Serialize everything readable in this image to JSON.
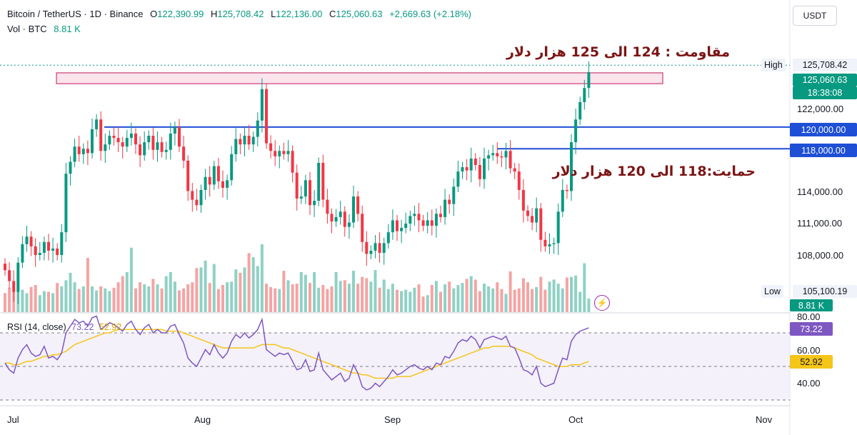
{
  "header": {
    "symbol": "Bitcoin / TetherUS · 1D · Binance",
    "o_label": "O",
    "o_value": "122,390.99",
    "h_label": "H",
    "h_value": "125,708.42",
    "l_label": "L",
    "l_value": "122,136.00",
    "c_label": "C",
    "c_value": "125,060.63",
    "change": "+2,669.63 (+2.18%)",
    "vol_label": "Vol · BTC",
    "vol_value": "8.81 K"
  },
  "currency_button": "USDT",
  "colors": {
    "up": "#089981",
    "down": "#f23645",
    "up_vol": "#8fd1c4",
    "down_vol": "#f5a3a3",
    "level_line": "#1e4fd6",
    "rsi_line": "#7e57c2",
    "rsi_ma": "#f5c518",
    "annotation": "#7b1414"
  },
  "annotations": {
    "resistance": "مقاومت : 124 الی 125 هزار دلار",
    "support": "حمایت:118 الی 120 هزار دلار"
  },
  "price_labels": {
    "high_tag": "High",
    "high_value": "125,708.42",
    "last_price": "125,060.63",
    "countdown": "18:38:08",
    "level_1": "120,000.00",
    "level_2": "118,000.00",
    "low_tag": "Low",
    "low_value": "105,100.19",
    "vol_last": "8.81 K"
  },
  "rsi": {
    "label": "RSI (14, close)",
    "value": "73.22",
    "ma_value": "52.92",
    "ticks": [
      "80.00",
      "60.00",
      "40.00"
    ]
  },
  "chart_data": {
    "type": "candlestick",
    "ylim": [
      103000,
      127500
    ],
    "yticks": [
      "122,000.00",
      "114,000.00",
      "111,000.00",
      "108,000.00"
    ],
    "xticks": [
      "Jul",
      "Aug",
      "Sep",
      "Oct",
      "Nov"
    ],
    "resistance_zone": [
      124000,
      125000
    ],
    "support_levels": [
      120000,
      118000
    ],
    "close": [
      106800,
      105800,
      104800,
      107500,
      109200,
      109900,
      109000,
      108200,
      108400,
      109400,
      108600,
      108800,
      108200,
      110300,
      115700,
      116800,
      118200,
      117500,
      118000,
      117600,
      119800,
      120700,
      117800,
      118400,
      119200,
      119000,
      118600,
      118200,
      119000,
      119400,
      118400,
      117400,
      118600,
      119200,
      117900,
      118600,
      117700,
      117900,
      119400,
      120000,
      118200,
      116900,
      114100,
      113300,
      112800,
      114200,
      115400,
      114700,
      116400,
      115000,
      114400,
      115100,
      117500,
      118900,
      118400,
      119200,
      118400,
      119100,
      120600,
      123500,
      118500,
      117800,
      117300,
      117800,
      117500,
      117800,
      115800,
      113400,
      113600,
      115100,
      112800,
      113200,
      116700,
      113300,
      112000,
      111300,
      111700,
      112200,
      110800,
      111200,
      113600,
      112000,
      109400,
      108300,
      108600,
      109300,
      108400,
      109300,
      110300,
      111400,
      110400,
      110700,
      111100,
      111800,
      112000,
      111400,
      110900,
      111400,
      110900,
      112000,
      111700,
      113300,
      112900,
      114500,
      115900,
      116300,
      116000,
      117100,
      116500,
      115200,
      117100,
      117400,
      117600,
      117300,
      117200,
      117800,
      116200,
      115900,
      114200,
      112300,
      111800,
      111200,
      112500,
      109600,
      109000,
      109200,
      109300,
      112200,
      114200,
      114100,
      118600,
      120700,
      122300,
      123600,
      125060
    ],
    "volume_rel": [
      0.28,
      0.36,
      0.3,
      0.31,
      0.33,
      0.28,
      0.37,
      0.4,
      0.25,
      0.31,
      0.3,
      0.28,
      0.43,
      0.38,
      0.47,
      0.58,
      0.44,
      0.34,
      0.38,
      0.8,
      0.38,
      0.32,
      0.38,
      0.35,
      0.31,
      0.36,
      0.44,
      0.53,
      0.59,
      0.95,
      0.35,
      0.44,
      0.41,
      0.38,
      0.49,
      0.41,
      0.35,
      0.53,
      0.59,
      0.45,
      0.32,
      0.35,
      0.41,
      0.44,
      0.65,
      0.66,
      0.76,
      0.43,
      0.71,
      0.34,
      0.4,
      0.44,
      0.45,
      0.63,
      0.58,
      0.66,
      0.87,
      0.81,
      0.68,
      1.0,
      0.42,
      0.37,
      0.35,
      0.34,
      0.61,
      0.47,
      0.41,
      0.42,
      0.59,
      0.55,
      0.43,
      0.59,
      0.36,
      0.4,
      0.34,
      0.38,
      0.59,
      0.46,
      0.47,
      0.42,
      0.61,
      0.42,
      0.52,
      0.5,
      0.45,
      0.62,
      0.36,
      0.48,
      0.34,
      0.42,
      0.33,
      0.31,
      0.33,
      0.3,
      0.36,
      0.41,
      0.23,
      0.25,
      0.4,
      0.46,
      0.3,
      0.41,
      0.45,
      0.35,
      0.4,
      0.43,
      0.49,
      0.53,
      0.48,
      0.31,
      0.42,
      0.38,
      0.35,
      0.44,
      0.34,
      0.27,
      0.6,
      0.33,
      0.35,
      0.5,
      0.44,
      0.34,
      0.37,
      0.52,
      0.33,
      0.45,
      0.48,
      0.42,
      0.35,
      0.51,
      0.52,
      0.54,
      0.3,
      0.72,
      0.2
    ],
    "rsi_values": [
      52,
      48,
      46,
      55,
      60,
      63,
      58,
      56,
      57,
      62,
      55,
      56,
      54,
      58,
      70,
      74,
      78,
      76,
      77,
      74,
      79,
      80,
      72,
      74,
      76,
      75,
      73,
      71,
      75,
      77,
      72,
      69,
      73,
      75,
      70,
      72,
      70,
      70,
      74,
      75,
      69,
      64,
      55,
      52,
      50,
      55,
      60,
      57,
      63,
      58,
      55,
      58,
      65,
      69,
      67,
      70,
      67,
      69,
      72,
      78,
      60,
      58,
      56,
      58,
      57,
      58,
      53,
      48,
      49,
      54,
      47,
      48,
      58,
      48,
      45,
      42,
      44,
      46,
      41,
      43,
      51,
      46,
      38,
      36,
      37,
      40,
      38,
      41,
      44,
      48,
      45,
      46,
      48,
      50,
      51,
      49,
      48,
      50,
      48,
      52,
      51,
      56,
      55,
      59,
      64,
      66,
      65,
      68,
      66,
      61,
      66,
      67,
      68,
      67,
      66,
      68,
      62,
      61,
      55,
      48,
      47,
      45,
      50,
      40,
      38,
      39,
      40,
      48,
      55,
      54,
      65,
      69,
      71,
      72,
      73
    ],
    "rsi_ma_values": [
      52,
      52,
      51,
      51,
      52,
      53,
      53,
      54,
      55,
      56,
      56,
      57,
      57,
      58,
      59,
      61,
      63,
      64,
      65,
      66,
      67,
      68,
      69,
      70,
      70,
      71,
      72,
      72,
      72,
      72,
      72,
      72,
      72,
      72,
      72,
      72,
      72,
      71,
      71,
      71,
      71,
      70,
      69,
      68,
      67,
      66,
      65,
      64,
      63,
      62,
      61,
      61,
      61,
      61,
      61,
      61,
      61,
      61,
      62,
      63,
      63,
      63,
      63,
      62,
      61,
      61,
      60,
      59,
      58,
      57,
      56,
      55,
      54,
      53,
      52,
      51,
      50,
      49,
      48,
      47,
      46,
      46,
      45,
      45,
      44,
      43,
      43,
      43,
      43,
      43,
      44,
      44,
      44,
      44,
      45,
      46,
      47,
      48,
      49,
      50,
      51,
      52,
      53,
      54,
      55,
      56,
      57,
      58,
      59,
      60,
      61,
      61,
      62,
      62,
      62,
      62,
      62,
      61,
      60,
      59,
      58,
      57,
      55,
      54,
      53,
      52,
      51,
      50,
      50,
      50,
      51,
      51,
      51,
      52,
      53
    ],
    "rsi_levels": [
      70,
      50,
      30
    ]
  }
}
